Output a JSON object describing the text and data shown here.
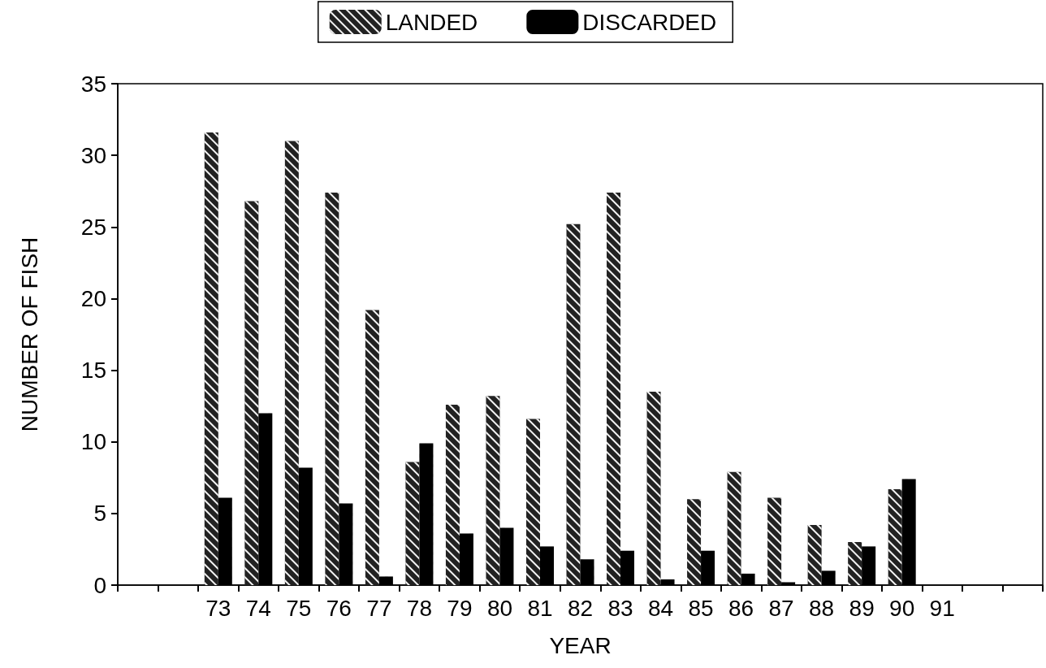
{
  "chart_data": {
    "type": "bar",
    "xlabel": "YEAR",
    "ylabel": "NUMBER OF FISH",
    "categories": [
      null,
      null,
      "73",
      "74",
      "75",
      "76",
      "77",
      "78",
      "79",
      "80",
      "81",
      "82",
      "83",
      "84",
      "85",
      "86",
      "87",
      "88",
      "89",
      "90",
      "91",
      null,
      null
    ],
    "series": [
      {
        "name": "LANDED",
        "color": "#222222",
        "values": [
          null,
          null,
          31.6,
          26.8,
          31.0,
          27.4,
          19.2,
          8.6,
          12.6,
          13.2,
          11.6,
          25.2,
          27.4,
          13.5,
          6.0,
          7.9,
          6.1,
          4.2,
          3.0,
          6.7,
          null,
          null,
          null
        ]
      },
      {
        "name": "DISCARDED",
        "color": "#000000",
        "values": [
          null,
          null,
          6.1,
          12.0,
          8.2,
          5.7,
          0.6,
          9.9,
          3.6,
          4.0,
          2.7,
          1.8,
          2.4,
          0.4,
          2.4,
          0.8,
          0.2,
          1.0,
          2.7,
          7.4,
          null,
          null,
          null
        ]
      }
    ],
    "ylim": [
      0,
      35
    ],
    "yticks": [
      0,
      5,
      10,
      15,
      20,
      25,
      30,
      35
    ],
    "grid": false,
    "legend": "top"
  }
}
